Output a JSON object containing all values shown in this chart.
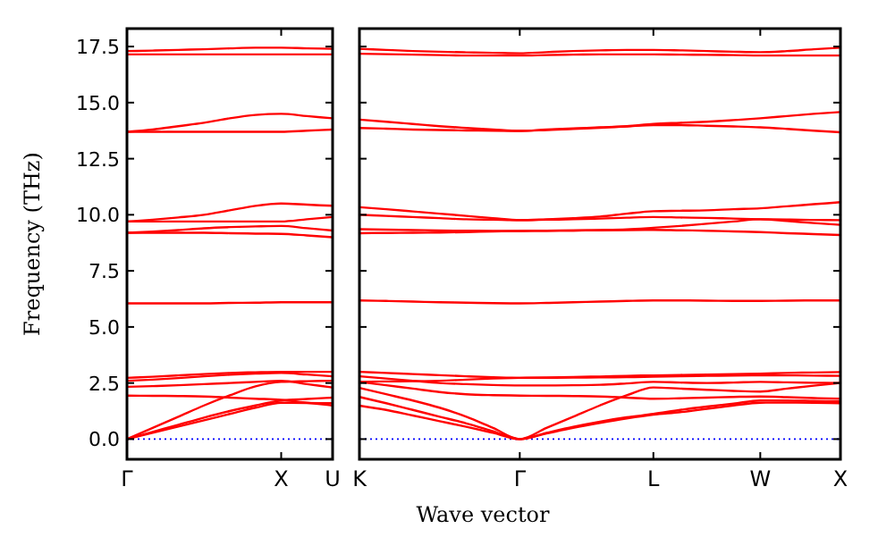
{
  "chart_data": [
    {
      "type": "line",
      "ylabel": "Frequency (THz)",
      "categories": [
        "Γ",
        null,
        null,
        null,
        null,
        null,
        "X",
        null,
        "U"
      ],
      "ylim": [
        -0.9,
        18.3
      ],
      "yticks": [
        {
          "value": 0,
          "label": "0.0"
        },
        {
          "value": 2.5,
          "label": "2.5"
        },
        {
          "value": 5,
          "label": "5.0"
        },
        {
          "value": 7.5,
          "label": "7.5"
        },
        {
          "value": 10,
          "label": "10.0"
        },
        {
          "value": 12.5,
          "label": "12.5"
        },
        {
          "value": 15,
          "label": "15.0"
        },
        {
          "value": 17.5,
          "label": "17.5"
        }
      ],
      "ref_lines": [
        {
          "axis": "y",
          "value": 0,
          "color": "#0000ff",
          "line_style": "dotted"
        }
      ],
      "series": [
        {
          "color": "#ff0000",
          "values": [
            0,
            0.28,
            0.56,
            0.84,
            1.12,
            1.4,
            1.62,
            1.61,
            1.6
          ]
        },
        {
          "color": "#ff0000",
          "values": [
            0,
            0.32,
            0.64,
            0.96,
            1.25,
            1.5,
            1.72,
            1.79,
            1.85
          ]
        },
        {
          "color": "#ff0000",
          "values": [
            0,
            0.5,
            1.0,
            1.5,
            1.95,
            2.35,
            2.55,
            2.58,
            2.6
          ]
        },
        {
          "color": "#ff0000",
          "values": [
            1.94,
            1.93,
            1.92,
            1.9,
            1.85,
            1.8,
            1.75,
            1.62,
            1.5
          ]
        },
        {
          "color": "#ff0000",
          "values": [
            2.33,
            2.36,
            2.4,
            2.45,
            2.5,
            2.55,
            2.6,
            2.45,
            2.3
          ]
        },
        {
          "color": "#ff0000",
          "values": [
            2.6,
            2.65,
            2.72,
            2.8,
            2.87,
            2.92,
            2.95,
            2.88,
            2.8
          ]
        },
        {
          "color": "#ff0000",
          "values": [
            2.73,
            2.78,
            2.84,
            2.9,
            2.95,
            2.98,
            3.0,
            3.0,
            3.0
          ]
        },
        {
          "color": "#ff0000",
          "values": [
            6.05,
            6.05,
            6.05,
            6.05,
            6.07,
            6.08,
            6.1,
            6.1,
            6.1
          ]
        },
        {
          "color": "#ff0000",
          "values": [
            9.2,
            9.2,
            9.2,
            9.2,
            9.18,
            9.16,
            9.15,
            9.08,
            9.0
          ]
        },
        {
          "color": "#ff0000",
          "values": [
            9.2,
            9.25,
            9.32,
            9.4,
            9.45,
            9.48,
            9.5,
            9.4,
            9.3
          ]
        },
        {
          "color": "#ff0000",
          "values": [
            9.7,
            9.78,
            9.88,
            10.0,
            10.2,
            10.4,
            10.5,
            10.45,
            10.4
          ]
        },
        {
          "color": "#ff0000",
          "values": [
            9.7,
            9.7,
            9.7,
            9.7,
            9.7,
            9.7,
            9.7,
            9.8,
            9.9
          ]
        },
        {
          "color": "#ff0000",
          "values": [
            13.7,
            13.7,
            13.7,
            13.7,
            13.7,
            13.7,
            13.7,
            13.75,
            13.8
          ]
        },
        {
          "color": "#ff0000",
          "values": [
            13.7,
            13.8,
            13.95,
            14.1,
            14.3,
            14.45,
            14.5,
            14.4,
            14.3
          ]
        },
        {
          "color": "#ff0000",
          "values": [
            17.15,
            17.15,
            17.15,
            17.15,
            17.15,
            17.15,
            17.15,
            17.15,
            17.15
          ]
        },
        {
          "color": "#ff0000",
          "values": [
            17.3,
            17.32,
            17.35,
            17.38,
            17.42,
            17.45,
            17.45,
            17.42,
            17.4
          ]
        }
      ]
    },
    {
      "type": "line",
      "xlabel": "Wave vector",
      "categories": [
        "K",
        null,
        null,
        null,
        null,
        null,
        "Γ",
        null,
        null,
        null,
        null,
        "L",
        null,
        null,
        null,
        "W",
        null,
        null,
        "X"
      ],
      "ylim": [
        -0.9,
        18.3
      ],
      "yticks": [
        0,
        2.5,
        5,
        7.5,
        10,
        12.5,
        15,
        17.5
      ],
      "tick_labels": "x",
      "ref_lines": [
        {
          "axis": "y",
          "value": 0,
          "color": "#0000ff",
          "line_style": "dotted"
        }
      ],
      "series": [
        {
          "color": "#ff0000",
          "values": [
            1.49,
            1.3,
            1.05,
            0.8,
            0.55,
            0.28,
            0,
            0.25,
            0.5,
            0.72,
            0.92,
            1.09,
            1.2,
            1.35,
            1.5,
            1.62,
            1.63,
            1.62,
            1.6
          ]
        },
        {
          "color": "#ff0000",
          "values": [
            1.88,
            1.6,
            1.3,
            1.0,
            0.7,
            0.35,
            0,
            0.28,
            0.55,
            0.78,
            0.97,
            1.12,
            1.3,
            1.45,
            1.58,
            1.72,
            1.72,
            1.7,
            1.68
          ]
        },
        {
          "color": "#ff0000",
          "values": [
            2.28,
            2.0,
            1.72,
            1.4,
            1.0,
            0.5,
            0,
            0.5,
            1.0,
            1.5,
            1.95,
            2.3,
            2.25,
            2.2,
            2.15,
            2.12,
            2.25,
            2.38,
            2.5
          ]
        },
        {
          "color": "#ff0000",
          "values": [
            2.55,
            2.4,
            2.25,
            2.1,
            2.0,
            1.96,
            1.94,
            1.93,
            1.92,
            1.9,
            1.85,
            1.8,
            1.82,
            1.85,
            1.88,
            1.9,
            1.87,
            1.83,
            1.8
          ]
        },
        {
          "color": "#ff0000",
          "values": [
            2.8,
            2.7,
            2.6,
            2.5,
            2.45,
            2.41,
            2.39,
            2.39,
            2.4,
            2.42,
            2.48,
            2.55,
            2.52,
            2.5,
            2.52,
            2.55,
            2.53,
            2.51,
            2.5
          ]
        },
        {
          "color": "#ff0000",
          "values": [
            2.55,
            2.57,
            2.58,
            2.6,
            2.65,
            2.7,
            2.73,
            2.75,
            2.77,
            2.79,
            2.82,
            2.84,
            2.86,
            2.88,
            2.9,
            2.92,
            2.95,
            2.97,
            2.99
          ]
        },
        {
          "color": "#ff0000",
          "values": [
            3.0,
            2.95,
            2.9,
            2.85,
            2.8,
            2.76,
            2.73,
            2.73,
            2.74,
            2.75,
            2.76,
            2.78,
            2.8,
            2.82,
            2.83,
            2.84,
            2.84,
            2.83,
            2.82
          ]
        },
        {
          "color": "#ff0000",
          "values": [
            6.18,
            6.16,
            6.13,
            6.1,
            6.08,
            6.06,
            6.05,
            6.07,
            6.1,
            6.13,
            6.16,
            6.18,
            6.18,
            6.17,
            6.16,
            6.16,
            6.17,
            6.18,
            6.18
          ]
        },
        {
          "color": "#ff0000",
          "values": [
            9.18,
            9.19,
            9.2,
            9.21,
            9.23,
            9.26,
            9.28,
            9.29,
            9.3,
            9.31,
            9.32,
            9.33,
            9.31,
            9.29,
            9.26,
            9.23,
            9.18,
            9.14,
            9.1
          ]
        },
        {
          "color": "#ff0000",
          "values": [
            9.36,
            9.34,
            9.32,
            9.3,
            9.29,
            9.28,
            9.28,
            9.29,
            9.3,
            9.32,
            9.35,
            9.42,
            9.5,
            9.6,
            9.7,
            9.8,
            9.72,
            9.63,
            9.55
          ]
        },
        {
          "color": "#ff0000",
          "values": [
            10.0,
            9.95,
            9.9,
            9.85,
            9.8,
            9.78,
            9.76,
            9.8,
            9.85,
            9.92,
            10.05,
            10.16,
            10.18,
            10.2,
            10.25,
            10.29,
            10.38,
            10.47,
            10.56
          ]
        },
        {
          "color": "#ff0000",
          "values": [
            10.34,
            10.25,
            10.15,
            10.05,
            9.95,
            9.85,
            9.76,
            9.78,
            9.8,
            9.83,
            9.87,
            9.9,
            9.88,
            9.86,
            9.83,
            9.8,
            9.79,
            9.77,
            9.76
          ]
        },
        {
          "color": "#ff0000",
          "values": [
            13.87,
            13.84,
            13.8,
            13.78,
            13.76,
            13.75,
            13.74,
            13.78,
            13.83,
            13.88,
            13.94,
            14.0,
            14.0,
            13.97,
            13.94,
            13.9,
            13.83,
            13.75,
            13.68
          ]
        },
        {
          "color": "#ff0000",
          "values": [
            14.24,
            14.15,
            14.05,
            13.95,
            13.87,
            13.8,
            13.74,
            13.8,
            13.85,
            13.9,
            13.95,
            14.05,
            14.1,
            14.15,
            14.22,
            14.3,
            14.4,
            14.5,
            14.58
          ]
        },
        {
          "color": "#ff0000",
          "values": [
            17.18,
            17.16,
            17.14,
            17.12,
            17.1,
            17.1,
            17.1,
            17.12,
            17.14,
            17.15,
            17.15,
            17.15,
            17.14,
            17.13,
            17.12,
            17.1,
            17.1,
            17.1,
            17.1
          ]
        },
        {
          "color": "#ff0000",
          "values": [
            17.4,
            17.35,
            17.3,
            17.27,
            17.24,
            17.22,
            17.2,
            17.25,
            17.3,
            17.33,
            17.35,
            17.35,
            17.33,
            17.3,
            17.27,
            17.25,
            17.3,
            17.38,
            17.45
          ]
        }
      ]
    }
  ]
}
